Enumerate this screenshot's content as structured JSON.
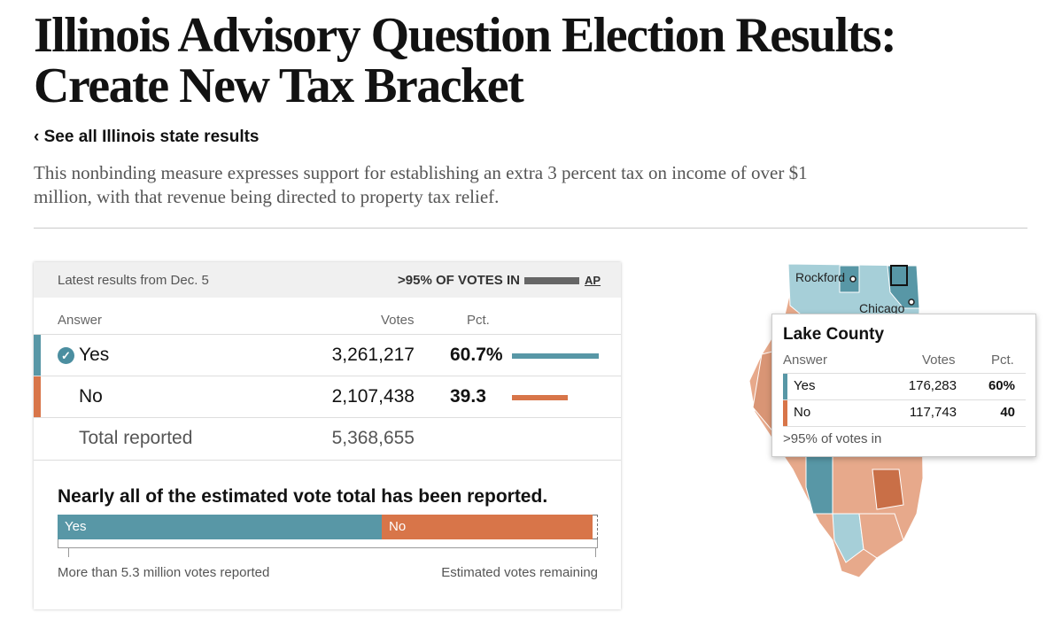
{
  "page": {
    "title": "Illinois Advisory Question Election Results: Create New Tax Bracket",
    "back_link": "‹ See all Illinois state results",
    "summary": "This nonbinding measure expresses support for establishing an extra 3 percent tax on income of over $1 million, with that revenue being directed to property tax relief."
  },
  "results": {
    "latest": "Latest results from Dec. 5",
    "reporting": ">95% OF VOTES IN",
    "source": "AP",
    "columns": {
      "answer": "Answer",
      "votes": "Votes",
      "pct": "Pct."
    },
    "rows": [
      {
        "label": "Yes",
        "votes": "3,261,217",
        "pct": "60.7%",
        "pct_value": 60.7,
        "winner": true,
        "color": "#5897a6"
      },
      {
        "label": "No",
        "votes": "2,107,438",
        "pct": "39.3",
        "pct_value": 39.3,
        "winner": false,
        "color": "#d87549"
      }
    ],
    "total_label": "Total reported",
    "total_votes": "5,368,655"
  },
  "reported": {
    "title": "Nearly all of the estimated vote total has been reported.",
    "yes_label": "Yes",
    "no_label": "No",
    "yes_share": 0.6,
    "no_share": 0.39,
    "remaining_share": 0.01,
    "left_note": "More than 5.3 million votes reported",
    "right_note": "Estimated votes remaining"
  },
  "map": {
    "cities": {
      "rockford": "Rockford",
      "chicago": "Chicago"
    },
    "tooltip": {
      "title": "Lake County",
      "columns": {
        "answer": "Answer",
        "votes": "Votes",
        "pct": "Pct."
      },
      "rows": [
        {
          "label": "Yes",
          "votes": "176,283",
          "pct": "60%"
        },
        {
          "label": "No",
          "votes": "117,743",
          "pct": "40"
        }
      ],
      "note": ">95% of votes in"
    }
  }
}
